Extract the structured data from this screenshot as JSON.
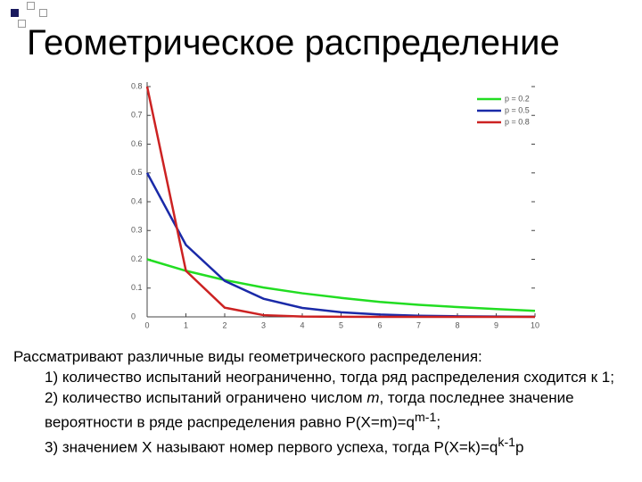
{
  "title": "Геометрическое распределение",
  "chart_data": {
    "type": "line",
    "x": [
      0,
      1,
      2,
      3,
      4,
      5,
      6,
      7,
      8,
      9,
      10
    ],
    "xlim": [
      0,
      10
    ],
    "xticks": [
      0,
      1,
      2,
      3,
      4,
      5,
      6,
      7,
      8,
      9,
      10
    ],
    "ylim": [
      0,
      0.8
    ],
    "yticks": [
      0,
      0.1,
      0.2,
      0.3,
      0.4,
      0.5,
      0.6,
      0.7,
      0.8
    ],
    "legend": "upper right",
    "series": [
      {
        "name": "p = 0.2",
        "color": "#22dd22",
        "values": [
          0.2,
          0.16,
          0.128,
          0.102,
          0.082,
          0.066,
          0.052,
          0.042,
          0.034,
          0.027,
          0.021
        ]
      },
      {
        "name": "p = 0.5",
        "color": "#1a2aa8",
        "values": [
          0.5,
          0.25,
          0.125,
          0.063,
          0.031,
          0.016,
          0.008,
          0.004,
          0.002,
          0.001,
          0.0005
        ]
      },
      {
        "name": "p = 0.8",
        "color": "#cc2222",
        "values": [
          0.8,
          0.16,
          0.032,
          0.006,
          0.001,
          0.0003,
          0.0001,
          0,
          0,
          0,
          0
        ]
      }
    ]
  },
  "body": {
    "intro": "Рассматривают различные виды геометрического распределения:",
    "items": [
      "1) количество испытаний неограниченно, тогда ряд распределения сходится к 1;"
    ],
    "item2": {
      "text": "2) количество испытаний ограничено числом ",
      "var": "m",
      "text2": ", тогда последнее значение вероятности в ряде распределения равно P(X=m)=q",
      "sup": "m-1",
      "end": ";"
    },
    "item3": {
      "text": "3) значением X называют номер первого успеха, тогда P(X=k)=q",
      "sup": "k-1",
      "end": "p"
    }
  }
}
